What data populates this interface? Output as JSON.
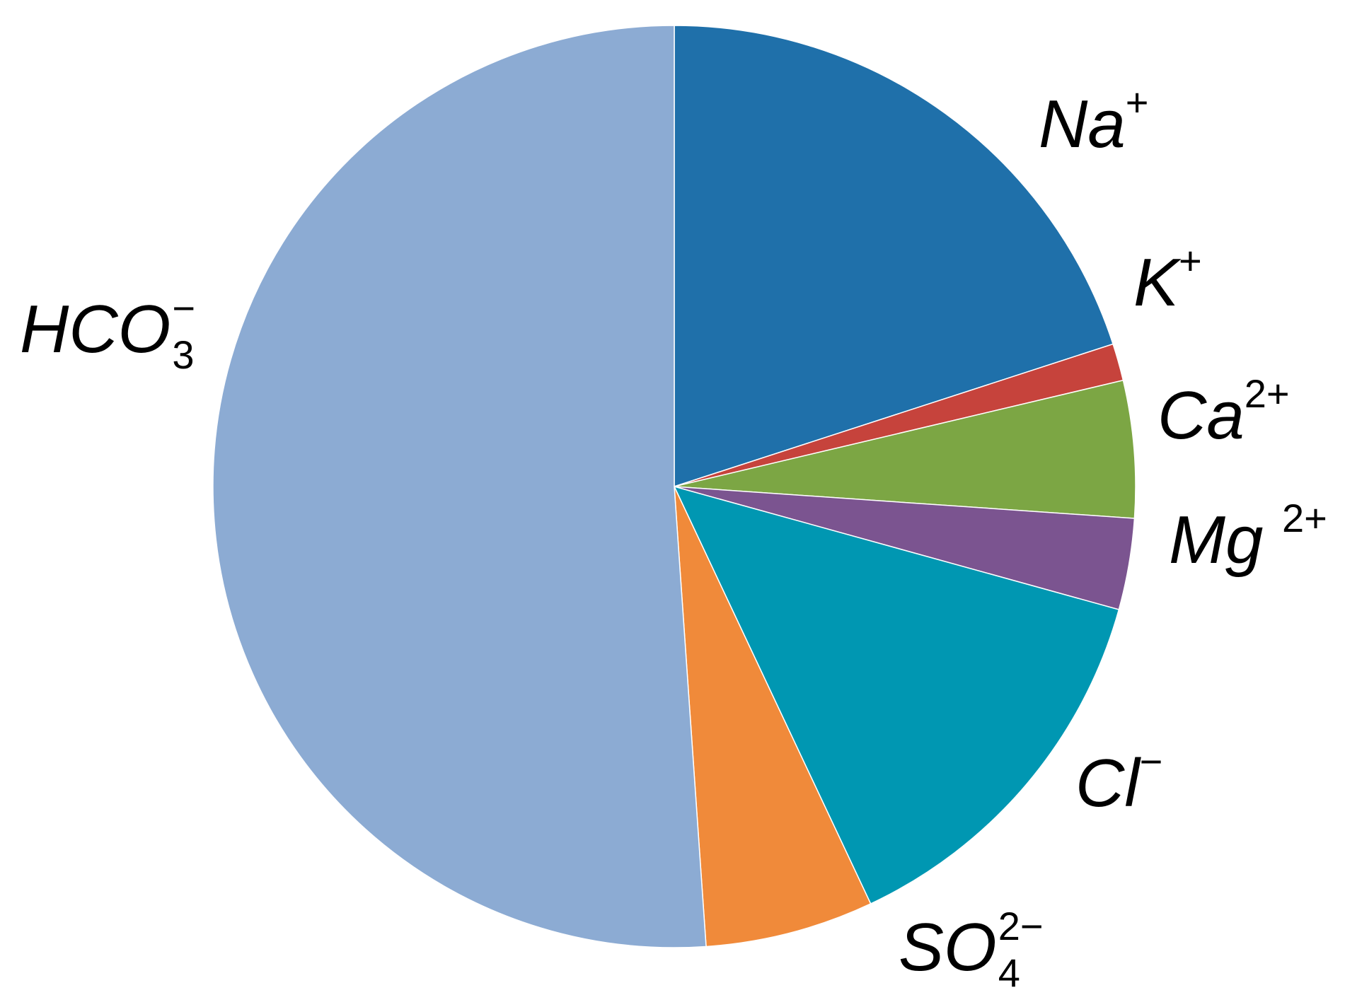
{
  "chart_data": {
    "type": "pie",
    "title": "",
    "start_angle_deg": 0,
    "direction": "clockwise",
    "slices": [
      {
        "base": "Na",
        "charge": "+",
        "index": "",
        "value": 20.0,
        "color": "#1f70aa"
      },
      {
        "base": "K",
        "charge": "+",
        "index": "",
        "value": 1.3,
        "color": "#c6433c"
      },
      {
        "base": "Ca",
        "charge": "2+",
        "index": "",
        "value": 4.8,
        "color": "#7ca644"
      },
      {
        "base": "Mg",
        "charge": "2+",
        "index": "",
        "value": 3.2,
        "color": "#7b5490"
      },
      {
        "base": "Cl",
        "charge": "−",
        "index": "",
        "value": 13.7,
        "color": "#0097b2"
      },
      {
        "base": "SO",
        "charge": "2−",
        "index": "4",
        "value": 5.9,
        "color": "#f08a3a"
      },
      {
        "base": "HCO",
        "charge": "−",
        "index": "3",
        "value": 51.1,
        "color": "#8cabd3"
      }
    ]
  }
}
